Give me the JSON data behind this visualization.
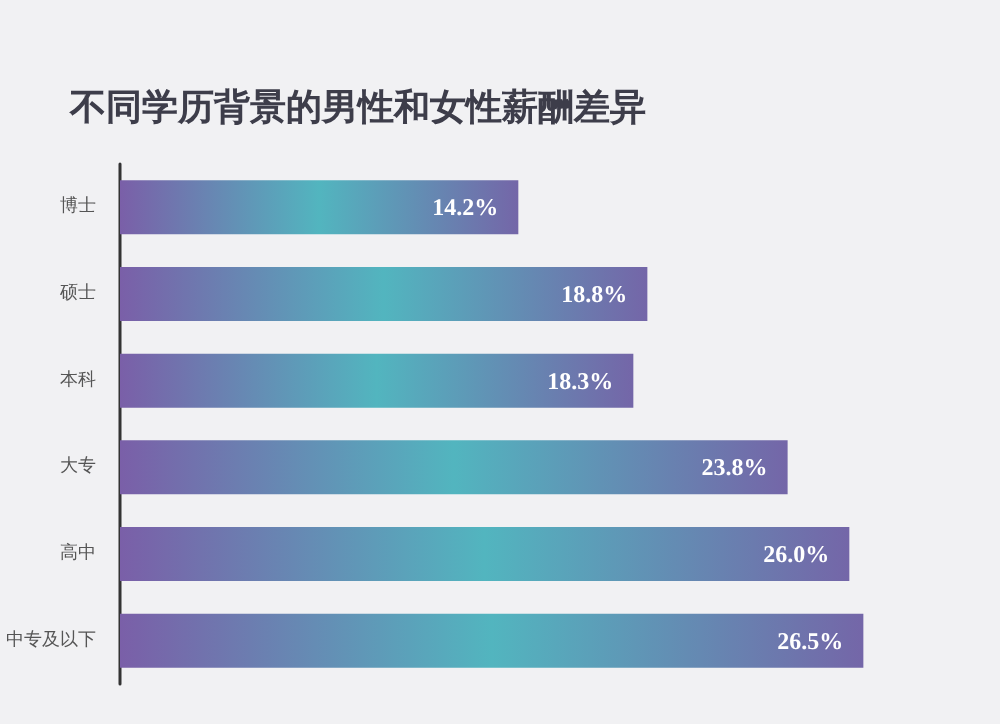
{
  "chart_data": {
    "type": "bar",
    "orientation": "horizontal",
    "title": "不同学历背景的男性和女性薪酬差异",
    "categories": [
      "博士",
      "硕士",
      "本科",
      "大专",
      "高中",
      "中专及以下"
    ],
    "values": [
      14.2,
      18.8,
      18.3,
      23.8,
      26.0,
      26.5
    ],
    "value_labels": [
      "14.2%",
      "18.8%",
      "18.3%",
      "23.8%",
      "26.0%",
      "26.5%"
    ],
    "color": "#52b5bf"
  }
}
